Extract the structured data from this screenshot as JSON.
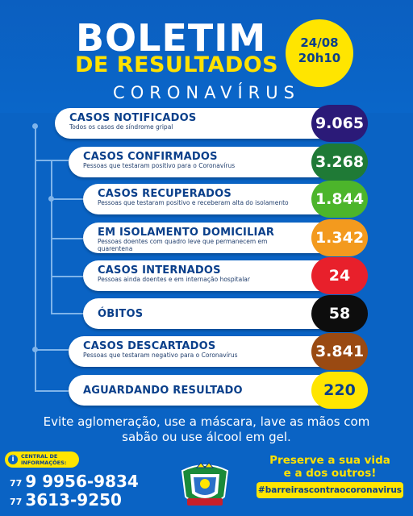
{
  "header": {
    "title_line1": "BOLETIM",
    "title_line2": "DE RESULTADOS",
    "subtitle": "CORONAVÍRUS",
    "date": "24/08",
    "time": "20h10"
  },
  "cases": [
    {
      "label": "CASOS NOTIFICADOS",
      "desc": "Todos os casos de síndrome gripal",
      "value": "9.065",
      "color": "#2b1a78"
    },
    {
      "label": "CASOS CONFIRMADOS",
      "desc": "Pessoas que testaram positivo para o Coronavírus",
      "value": "3.268",
      "color": "#1f7a36"
    },
    {
      "label": "CASOS RECUPERADOS",
      "desc": "Pessoas que testaram positivo e receberam alta do isolamento",
      "value": "1.844",
      "color": "#4cb52b"
    },
    {
      "label": "EM ISOLAMENTO DOMICILIAR",
      "desc": "Pessoas doentes com quadro leve que permanecem em quarentena",
      "value": "1.342",
      "color": "#f39a1e"
    },
    {
      "label": "CASOS INTERNADOS",
      "desc": "Pessoas ainda doentes e em internação hospitalar",
      "value": "24",
      "color": "#e8202b"
    },
    {
      "label": "ÓBITOS",
      "desc": "",
      "value": "58",
      "color": "#0d0d0d"
    },
    {
      "label": "CASOS DESCARTADOS",
      "desc": "Pessoas que testaram negativo para o Coronavírus",
      "value": "3.841",
      "color": "#9a4a12"
    },
    {
      "label": "AGUARDANDO RESULTADO",
      "desc": "",
      "value": "220",
      "color": "#ffe500",
      "text_color": "#0a3f8a"
    }
  ],
  "warning": {
    "line1": "Evite aglomeração, use a máscara, lave as mãos com",
    "line2": "sabão ou use álcool em gel."
  },
  "contact": {
    "badge_line1": "CENTRAL DE",
    "badge_line2": "INFORMAÇÕES:",
    "ddd1": "77",
    "phone1": "9 9956-9834",
    "ddd2": "77",
    "phone2": "3613-9250"
  },
  "footer": {
    "slogan_line1": "Preserve a sua vida",
    "slogan_line2": "e a dos outros!",
    "hashtag": "#barreirascontraocoronavirus",
    "crest_text": "BARREIRAS"
  }
}
